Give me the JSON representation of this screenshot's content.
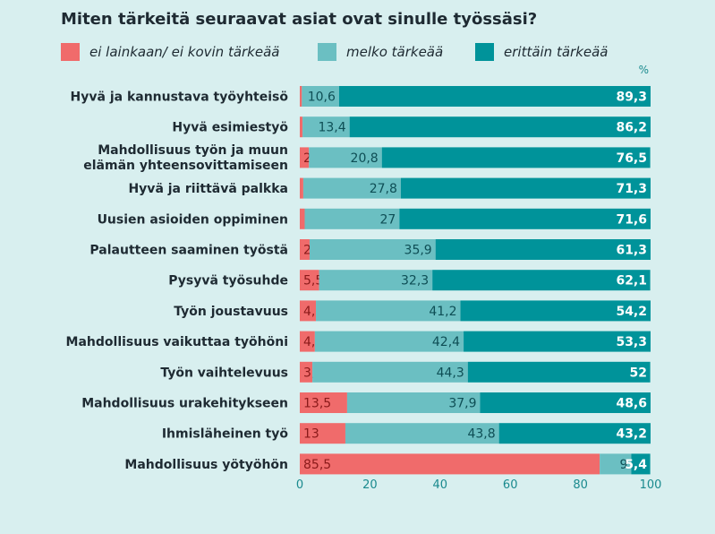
{
  "chart_data": {
    "type": "bar",
    "orientation": "horizontal",
    "stacked": true,
    "title": "Miten tärkeitä seuraavat asiat ovat sinulle työssäsi?",
    "unit": "%",
    "categories": [
      "Hyvä ja kannustava työyhteisö",
      "Hyvä esimiestyö",
      "Mahdollisuus työn ja muun|elämän yhteensovittamiseen",
      "Hyvä ja riittävä palkka",
      "Uusien asioiden oppiminen",
      "Palautteen saaminen työstä",
      "Pysyvä työsuhde",
      "Työn joustavuus",
      "Mahdollisuus vaikuttaa työhöni",
      "Työn vaihtelevuus",
      "Mahdollisuus urakehitykseen",
      "Ihmisläheinen työ",
      "Mahdollisuus yötyöhön"
    ],
    "series": [
      {
        "name": "ei lainkaan/ ei kovin tärkeää",
        "color": "#f06b6b",
        "label_color": "#8b1a1a",
        "values": [
          0.6,
          0.8,
          2.6,
          1,
          1.4,
          2.8,
          5.5,
          4.6,
          4.3,
          3.6,
          13.5,
          13,
          85.5
        ],
        "labels": [
          "",
          "",
          "2,6",
          "1",
          "1,4",
          "2,8",
          "5,5",
          "4,6",
          "4,3",
          "3,6",
          "13,5",
          "13",
          "85,5"
        ]
      },
      {
        "name": "melko tärkeää",
        "color": "#6bbfc2",
        "label_color": "#0e4e55",
        "values": [
          10.6,
          13.4,
          20.8,
          27.8,
          27,
          35.9,
          32.3,
          41.2,
          42.4,
          44.3,
          37.9,
          43.8,
          9
        ],
        "labels": [
          "10,6",
          "13,4",
          "20,8",
          "27,8",
          "27",
          "35,9",
          "32,3",
          "41,2",
          "42,4",
          "44,3",
          "37,9",
          "43,8",
          "9"
        ]
      },
      {
        "name": "erittäin tärkeää",
        "color": "#00939a",
        "label_color": "#ffffff",
        "values": [
          89.3,
          86.2,
          76.5,
          71.3,
          71.6,
          61.3,
          62.1,
          54.2,
          53.3,
          52,
          48.6,
          43.2,
          5.4
        ],
        "labels": [
          "89,3",
          "86,2",
          "76,5",
          "71,3",
          "71,6",
          "61,3",
          "62,1",
          "54,2",
          "53,3",
          "52",
          "48,6",
          "43,2",
          "5,4"
        ]
      }
    ],
    "xlim": [
      0,
      100
    ],
    "xticks": [
      0,
      20,
      40,
      60,
      80,
      100
    ],
    "legend_position": "top"
  }
}
